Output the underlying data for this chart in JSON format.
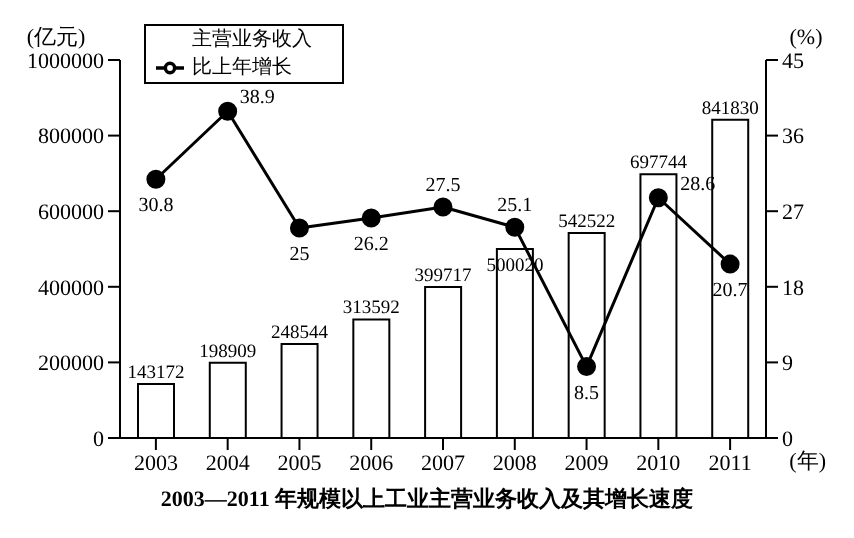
{
  "chart_data": {
    "type": "bar",
    "title": "2003—2011 年规模以上工业主营业务收入及其增长速度",
    "categories": [
      "2003",
      "2004",
      "2005",
      "2006",
      "2007",
      "2008",
      "2009",
      "2010",
      "2011"
    ],
    "xlabel": "(年)",
    "ylabel": "(亿元)",
    "y2label": "(%)",
    "series": [
      {
        "name": "主营业务收入",
        "color": "#ffffff",
        "values": [
          143172,
          198909,
          248544,
          313592,
          399717,
          500020,
          542522,
          697744,
          841830
        ]
      },
      {
        "name": "比上年增长",
        "type": "line",
        "axis": "y2",
        "color": "#000000",
        "marker": "circle",
        "values": [
          30.8,
          38.9,
          25.0,
          26.2,
          27.5,
          25.1,
          8.5,
          28.6,
          20.7
        ]
      }
    ],
    "ylim": [
      0,
      1000000
    ],
    "yticks": [
      0,
      200000,
      400000,
      600000,
      800000,
      1000000
    ],
    "y2lim": [
      0,
      45
    ],
    "y2ticks": [
      0,
      9,
      18,
      27,
      36,
      45
    ],
    "data_labels": true,
    "grid": false,
    "legend": "top left"
  }
}
